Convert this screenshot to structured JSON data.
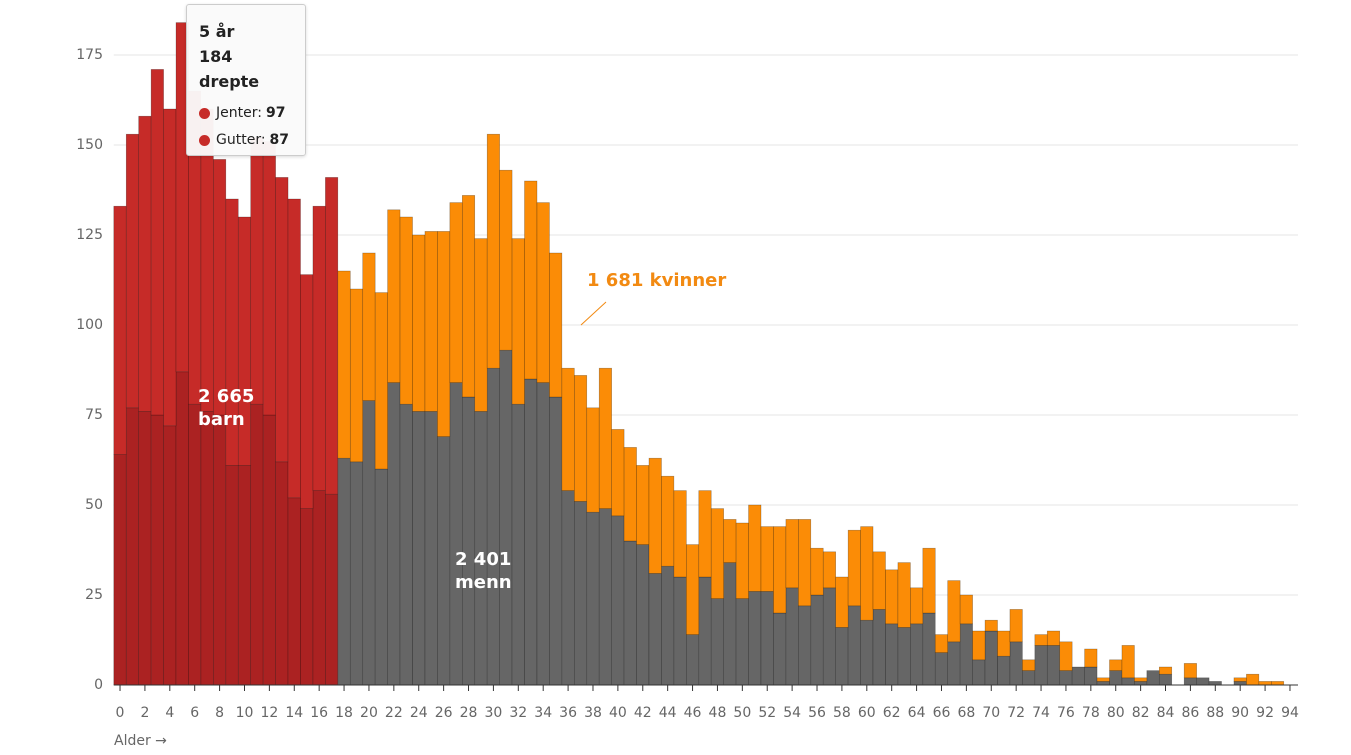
{
  "chart_data": {
    "type": "stacked-histogram",
    "x": [
      0,
      1,
      2,
      3,
      4,
      5,
      6,
      7,
      8,
      9,
      10,
      11,
      12,
      13,
      14,
      15,
      16,
      17,
      18,
      19,
      20,
      21,
      22,
      23,
      24,
      25,
      26,
      27,
      28,
      29,
      30,
      31,
      32,
      33,
      34,
      35,
      36,
      37,
      38,
      39,
      40,
      41,
      42,
      43,
      44,
      45,
      46,
      47,
      48,
      49,
      50,
      51,
      52,
      53,
      54,
      55,
      56,
      57,
      58,
      59,
      60,
      61,
      62,
      63,
      64,
      65,
      66,
      67,
      68,
      69,
      70,
      71,
      72,
      73,
      74,
      75,
      76,
      77,
      78,
      79,
      80,
      81,
      82,
      83,
      84,
      85,
      86,
      87,
      88,
      89,
      90,
      91,
      92,
      93,
      94
    ],
    "xlim": [
      -0.5,
      94.5
    ],
    "xticks": [
      0,
      2,
      4,
      6,
      8,
      10,
      12,
      14,
      16,
      18,
      20,
      22,
      24,
      26,
      28,
      30,
      32,
      34,
      36,
      38,
      40,
      42,
      44,
      46,
      48,
      50,
      52,
      54,
      56,
      58,
      60,
      62,
      64,
      66,
      68,
      70,
      72,
      74,
      76,
      78,
      80,
      82,
      84,
      86,
      88,
      90,
      92,
      94
    ],
    "ylim": [
      0,
      175
    ],
    "yticks": [
      0,
      25,
      50,
      75,
      100,
      125,
      150,
      175
    ],
    "grid": true,
    "xlabel": "Alder →",
    "series": [
      {
        "color": "#ab2222",
        "values": [
          64,
          77,
          76,
          75,
          72,
          87,
          78,
          76,
          75,
          61,
          61,
          78,
          75,
          62,
          52,
          49,
          54,
          53,
          null,
          null,
          null,
          null,
          null,
          null,
          null,
          null,
          null,
          null,
          null,
          null,
          null,
          null,
          null,
          null,
          null,
          null,
          null,
          null,
          null,
          null,
          null,
          null,
          null,
          null,
          null,
          null,
          null,
          null,
          null,
          null,
          null,
          null,
          null,
          null,
          null,
          null,
          null,
          null,
          null,
          null,
          null,
          null,
          null,
          null,
          null,
          null,
          null,
          null,
          null,
          null,
          null,
          null,
          null,
          null,
          null,
          null,
          null,
          null,
          null,
          null,
          null,
          null,
          null,
          null,
          null,
          null,
          null,
          null,
          null,
          null,
          null,
          null,
          null,
          null,
          null
        ]
      },
      {
        "color": "#c62b28",
        "values": [
          69,
          76,
          82,
          96,
          88,
          97,
          87,
          84,
          71,
          74,
          69,
          74,
          76,
          79,
          83,
          65,
          79,
          88,
          null,
          null,
          null,
          null,
          null,
          null,
          null,
          null,
          null,
          null,
          null,
          null,
          null,
          null,
          null,
          null,
          null,
          null,
          null,
          null,
          null,
          null,
          null,
          null,
          null,
          null,
          null,
          null,
          null,
          null,
          null,
          null,
          null,
          null,
          null,
          null,
          null,
          null,
          null,
          null,
          null,
          null,
          null,
          null,
          null,
          null,
          null,
          null,
          null,
          null,
          null,
          null,
          null,
          null,
          null,
          null,
          null,
          null,
          null,
          null,
          null,
          null,
          null,
          null,
          null,
          null,
          null,
          null,
          null,
          null,
          null,
          null,
          null,
          null,
          null,
          null,
          null
        ]
      },
      {
        "color": "#666666",
        "values": [
          null,
          null,
          null,
          null,
          null,
          null,
          null,
          null,
          null,
          null,
          null,
          null,
          null,
          null,
          null,
          null,
          null,
          null,
          63,
          62,
          79,
          60,
          84,
          78,
          76,
          76,
          69,
          84,
          80,
          76,
          88,
          93,
          78,
          85,
          84,
          80,
          54,
          51,
          48,
          49,
          47,
          40,
          39,
          31,
          33,
          30,
          14,
          30,
          24,
          34,
          24,
          26,
          26,
          20,
          27,
          22,
          25,
          27,
          16,
          22,
          18,
          21,
          17,
          16,
          17,
          20,
          9,
          12,
          17,
          7,
          15,
          8,
          12,
          4,
          11,
          11,
          4,
          5,
          5,
          1,
          4,
          2,
          1,
          4,
          3,
          0,
          2,
          2,
          1,
          0,
          1,
          0,
          0,
          0,
          0
        ]
      },
      {
        "color": "#fb8c06",
        "values": [
          null,
          null,
          null,
          null,
          null,
          null,
          null,
          null,
          null,
          null,
          null,
          null,
          null,
          null,
          null,
          null,
          null,
          null,
          52,
          48,
          41,
          49,
          48,
          52,
          49,
          50,
          57,
          50,
          56,
          48,
          65,
          50,
          46,
          55,
          50,
          40,
          34,
          35,
          29,
          39,
          24,
          26,
          22,
          32,
          25,
          24,
          25,
          24,
          25,
          12,
          21,
          24,
          18,
          24,
          19,
          24,
          13,
          10,
          14,
          21,
          26,
          16,
          15,
          18,
          10,
          18,
          5,
          17,
          8,
          8,
          3,
          7,
          9,
          3,
          3,
          4,
          8,
          0,
          5,
          1,
          3,
          9,
          1,
          0,
          2,
          0,
          4,
          0,
          0,
          0,
          1,
          3,
          1,
          1,
          0
        ]
      }
    ],
    "annotations": [
      {
        "lines": [
          "2 665",
          "barn"
        ],
        "color": "#ffffff"
      },
      {
        "lines": [
          "2 401",
          "menn"
        ],
        "color": "#ffffff"
      },
      {
        "lines": [
          "1 681 kvinner"
        ],
        "color": "#f28a12"
      }
    ],
    "tooltip": {
      "title": "5 år",
      "subtitle": "184 drepte",
      "rows": [
        {
          "label": "Jenter:",
          "color": "#c62b28"
        },
        {
          "label": "Gutter:",
          "color": "#c62b28"
        }
      ]
    }
  }
}
